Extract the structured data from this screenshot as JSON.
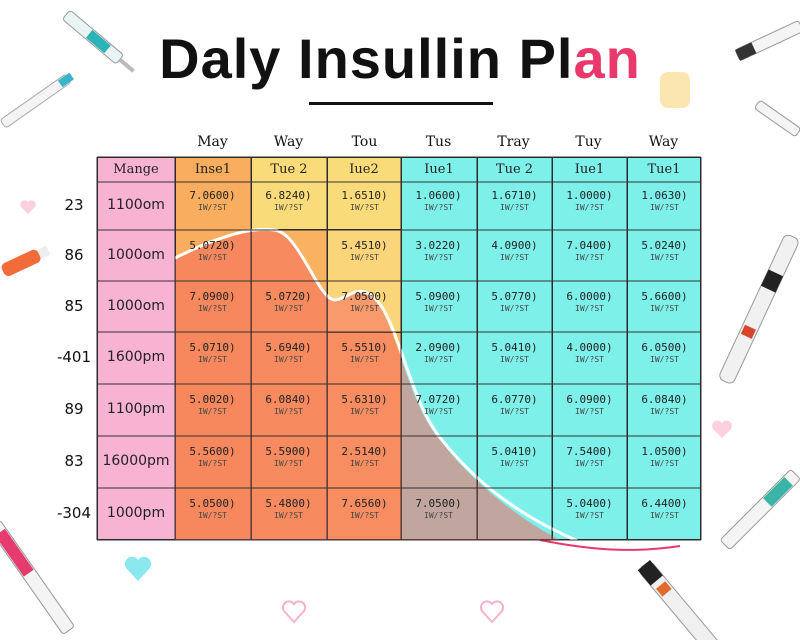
{
  "title": {
    "main": "Daly Insullin Pl",
    "accent": "an"
  },
  "column_headers": [
    "May",
    "Way",
    "Tou",
    "Tus",
    "Tray",
    "Tuy",
    "Way"
  ],
  "subheaders": [
    "Mange",
    "Inse1",
    "Tue 2",
    "Iue2",
    "Iue1",
    "Tue 2",
    "Iue1",
    "Tue1"
  ],
  "row_labels": [
    "23",
    "86",
    "85",
    "-401",
    "89",
    "83",
    "-304"
  ],
  "times": [
    "1100om",
    "1000om",
    "1000om",
    "1600pm",
    "1100pm",
    "16000pm",
    "1000pm"
  ],
  "dose_unit": "IW/?ST",
  "rows": [
    [
      "7.0600)",
      "6.8240)",
      "1.6510)",
      "1.0600)",
      "1.6710)",
      "1.0000)",
      "1.0630)"
    ],
    [
      "5.0720)",
      "",
      "5.4510)",
      "3.0220)",
      "4.0900)",
      "7.0400)",
      "5.0240)"
    ],
    [
      "7.0900)",
      "5.0720)",
      "7.0500)",
      "5.0900)",
      "5.0770)",
      "6.0000)",
      "5.6600)"
    ],
    [
      "5.0710)",
      "5.6940)",
      "5.5510)",
      "2.0900)",
      "5.0410)",
      "4.0000)",
      "6.0500)"
    ],
    [
      "5.0020)",
      "6.0840)",
      "5.6310)",
      "7.0720)",
      "6.0770)",
      "6.0900)",
      "6.0840)"
    ],
    [
      "5.5600)",
      "5.5900)",
      "2.5140)",
      "",
      "5.0410)",
      "7.5400)",
      "1.0500)"
    ],
    [
      "5.0500)",
      "5.4800)",
      "7.6560)",
      "7.0500)",
      "",
      "5.0400)",
      "6.4400)"
    ]
  ],
  "colors": {
    "label_column": "#f8b3d2",
    "orange": "#f9ad5e",
    "orange_dark": "#f79a4f",
    "yellow": "#fadb7a",
    "cyan": "#7ef0ea",
    "curve_fill": "#f56a5e",
    "curve_line": "#ffffff",
    "accent": "#e8396a"
  },
  "icons": [
    "syringe-icon",
    "heart-icon",
    "insulin-pen-icon",
    "pill-icon"
  ]
}
